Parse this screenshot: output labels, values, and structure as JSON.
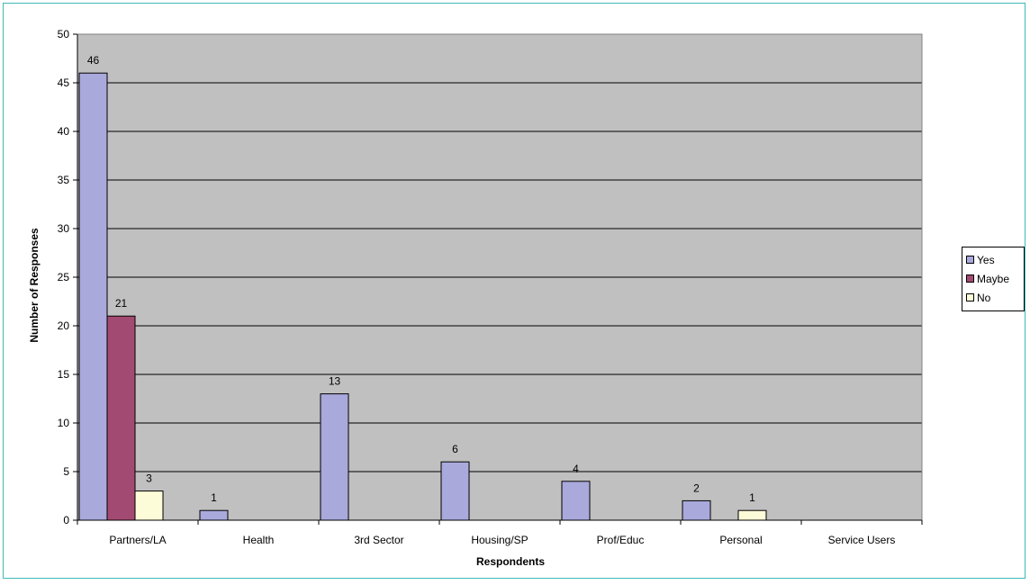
{
  "chart_data": {
    "type": "bar",
    "categories": [
      "Partners/LA",
      "Health",
      "3rd Sector",
      "Housing/SP",
      "Prof/Educ",
      "Personal",
      "Service Users"
    ],
    "series": [
      {
        "name": "Yes",
        "values": [
          46,
          1,
          13,
          6,
          4,
          2,
          0
        ],
        "color": "#a9a9dc"
      },
      {
        "name": "Maybe",
        "values": [
          21,
          0,
          0,
          0,
          0,
          0,
          0
        ],
        "color": "#a34a72"
      },
      {
        "name": "No",
        "values": [
          3,
          0,
          0,
          0,
          0,
          1,
          0
        ],
        "color": "#fdfcd8"
      }
    ],
    "data_labels": [
      {
        "series": 0,
        "category": 0,
        "text": "46"
      },
      {
        "series": 1,
        "category": 0,
        "text": "21"
      },
      {
        "series": 2,
        "category": 0,
        "text": "3"
      },
      {
        "series": 0,
        "category": 1,
        "text": "1"
      },
      {
        "series": 0,
        "category": 2,
        "text": "13"
      },
      {
        "series": 0,
        "category": 3,
        "text": "6"
      },
      {
        "series": 0,
        "category": 4,
        "text": "4"
      },
      {
        "series": 0,
        "category": 5,
        "text": "2"
      },
      {
        "series": 2,
        "category": 5,
        "text": "1"
      }
    ],
    "xlabel": "Respondents",
    "ylabel": "Number of Responses",
    "ylim": [
      0,
      50
    ],
    "yticks": [
      0,
      5,
      10,
      15,
      20,
      25,
      30,
      35,
      40,
      45,
      50
    ],
    "grid": true,
    "plot_background": "#c0c0c0",
    "legend_position": "right"
  }
}
